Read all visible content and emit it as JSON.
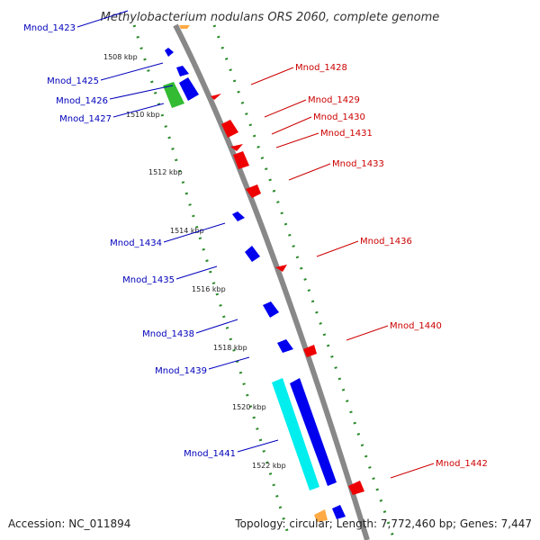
{
  "title": "Methylobacterium nodulans ORS 2060, complete genome",
  "accession": "Accession: NC_011894",
  "genome_stats": "Topology: circular; Length: 7,772,460 bp; Genes: 7,447",
  "colors": {
    "backbone": "#888888",
    "tick": "#2a8a2a",
    "forward_gene": "#0000ee",
    "reverse_gene": "#ee0000",
    "rna_gene": "#33bb33",
    "cds_highlight": "#00eeee",
    "other_feature": "#ffaa44",
    "forward_label": "#0000bb",
    "reverse_label": "#cc0000"
  },
  "kbp_markers": [
    "1508 kbp",
    "1510 kbp",
    "1512 kbp",
    "1514 kbp",
    "1516 kbp",
    "1518 kbp",
    "1520 kbp",
    "1522 kbp"
  ],
  "genes_forward": [
    {
      "label": "Mnod_1423"
    },
    {
      "label": "Mnod_1425"
    },
    {
      "label": "Mnod_1426"
    },
    {
      "label": "Mnod_1427"
    },
    {
      "label": "Mnod_1434"
    },
    {
      "label": "Mnod_1435"
    },
    {
      "label": "Mnod_1438"
    },
    {
      "label": "Mnod_1439"
    },
    {
      "label": "Mnod_1441"
    }
  ],
  "genes_reverse": [
    {
      "label": "Mnod_1428"
    },
    {
      "label": "Mnod_1429"
    },
    {
      "label": "Mnod_1430"
    },
    {
      "label": "Mnod_1431"
    },
    {
      "label": "Mnod_1433"
    },
    {
      "label": "Mnod_1436"
    },
    {
      "label": "Mnod_1440"
    },
    {
      "label": "Mnod_1442"
    }
  ]
}
